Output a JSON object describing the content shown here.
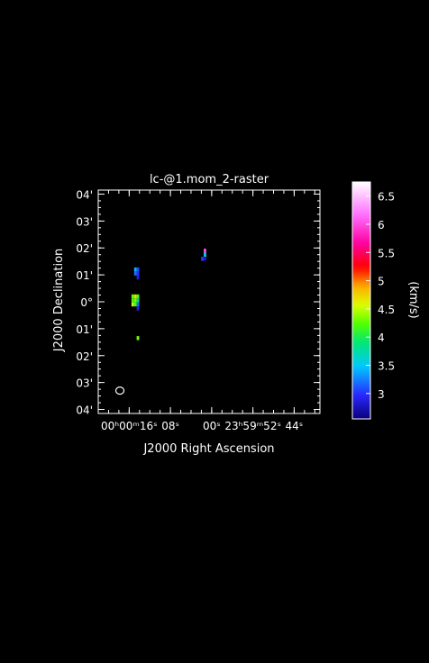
{
  "chart_data": {
    "type": "heatmap",
    "title": "lc-@1.mom_2-raster",
    "xlabel": "J2000 Right Ascension",
    "ylabel": "J2000 Declination",
    "x_ticks": [
      {
        "label": "00ʰ00ᵐ16ˢ",
        "value": 16
      },
      {
        "label": "08ˢ",
        "value": 8
      },
      {
        "label": "00ˢ",
        "value": 0
      },
      {
        "label": "23ʰ59ᵐ52ˢ",
        "value": -8
      },
      {
        "label": "44ˢ",
        "value": -16
      }
    ],
    "y_ticks": [
      {
        "label": "04'",
        "value": 4
      },
      {
        "label": "03'",
        "value": 3
      },
      {
        "label": "02'",
        "value": 2
      },
      {
        "label": "01'",
        "value": 1
      },
      {
        "label": "0°",
        "value": 0
      },
      {
        "label": "01'",
        "value": -1
      },
      {
        "label": "02'",
        "value": -2
      },
      {
        "label": "03'",
        "value": -3
      },
      {
        "label": "04'",
        "value": -4
      }
    ],
    "x_range_sec": [
      22,
      -21
    ],
    "y_range_arcmin": [
      -4.15,
      4.15
    ],
    "colorbar": {
      "label": "(km/s)",
      "range": [
        2.55,
        6.75
      ],
      "ticks": [
        3,
        3.5,
        4,
        4.5,
        5,
        5.5,
        6,
        6.5
      ],
      "colormap": "rainbow-white"
    },
    "pixels": [
      {
        "x": 1.3,
        "y": 1.9,
        "value": 6.0
      },
      {
        "x": 1.3,
        "y": 1.75,
        "value": 3.6
      },
      {
        "x": 1.8,
        "y": 1.6,
        "value": 3.0
      },
      {
        "x": 1.3,
        "y": 1.6,
        "value": 2.8
      },
      {
        "x": 14.8,
        "y": 1.2,
        "value": 3.4
      },
      {
        "x": 14.3,
        "y": 1.2,
        "value": 3.1
      },
      {
        "x": 14.8,
        "y": 1.05,
        "value": 3.2
      },
      {
        "x": 14.3,
        "y": 1.05,
        "value": 3.0
      },
      {
        "x": 14.3,
        "y": 0.9,
        "value": 2.9
      },
      {
        "x": 15.3,
        "y": 0.2,
        "value": 4.3
      },
      {
        "x": 14.8,
        "y": 0.2,
        "value": 4.7
      },
      {
        "x": 14.3,
        "y": 0.2,
        "value": 4.2
      },
      {
        "x": 15.3,
        "y": 0.05,
        "value": 4.2
      },
      {
        "x": 14.8,
        "y": 0.05,
        "value": 4.3
      },
      {
        "x": 14.3,
        "y": 0.05,
        "value": 3.8
      },
      {
        "x": 15.3,
        "y": -0.1,
        "value": 4.6
      },
      {
        "x": 14.8,
        "y": -0.1,
        "value": 4.2
      },
      {
        "x": 14.3,
        "y": -0.1,
        "value": 3.2
      },
      {
        "x": 14.3,
        "y": -0.25,
        "value": 2.9
      },
      {
        "x": 14.3,
        "y": -1.35,
        "value": 4.3
      }
    ],
    "beam": {
      "x": 17.8,
      "y": -3.3
    }
  }
}
